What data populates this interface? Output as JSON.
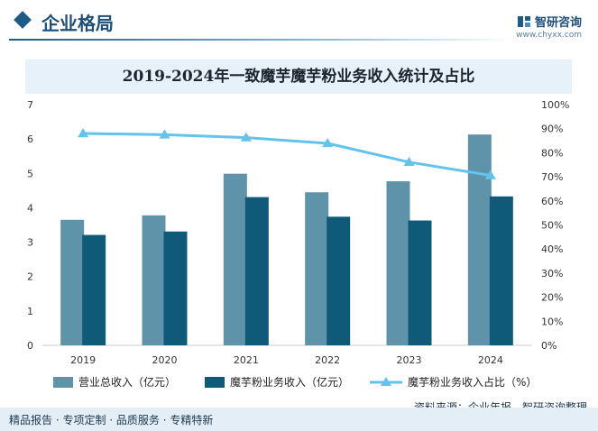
{
  "header": {
    "title": "企业格局",
    "brand_name": "智研咨询",
    "brand_url": "www.chyxx.com"
  },
  "colors": {
    "bar_total": "#5f93aa",
    "bar_konjac": "#0f5a78",
    "line_share": "#62c4ec",
    "header_accent": "#1e5b86"
  },
  "chart_data": {
    "type": "bar",
    "title": "2019-2024年一致魔芋魔芋粉业务收入统计及占比",
    "categories": [
      "2019",
      "2020",
      "2021",
      "2022",
      "2023",
      "2024"
    ],
    "series": [
      {
        "name": "营业总收入（亿元）",
        "type": "bar",
        "axis": "left",
        "values": [
          3.65,
          3.78,
          4.99,
          4.45,
          4.77,
          6.13
        ]
      },
      {
        "name": "魔芋粉业务收入（亿元）",
        "type": "bar",
        "axis": "left",
        "values": [
          3.21,
          3.31,
          4.31,
          3.74,
          3.63,
          4.33
        ]
      },
      {
        "name": "魔芋粉业务收入占比（%）",
        "type": "line",
        "axis": "right",
        "values": [
          88,
          87.5,
          86.3,
          83.9,
          76.1,
          70.6
        ]
      }
    ],
    "ylim_left": [
      0,
      7
    ],
    "yticks_left": [
      "0",
      "1",
      "2",
      "3",
      "4",
      "5",
      "6",
      "7"
    ],
    "ylim_right": [
      0,
      100
    ],
    "yticks_right": [
      "0%",
      "10%",
      "20%",
      "30%",
      "40%",
      "50%",
      "60%",
      "70%",
      "80%",
      "90%",
      "100%"
    ],
    "grid": false,
    "legend": "bottom"
  },
  "footer": {
    "tags": "精品报告 · 专项定制 · 品质服务 · 专精特新",
    "source": "资料来源：企业年报、智研咨询整理"
  }
}
